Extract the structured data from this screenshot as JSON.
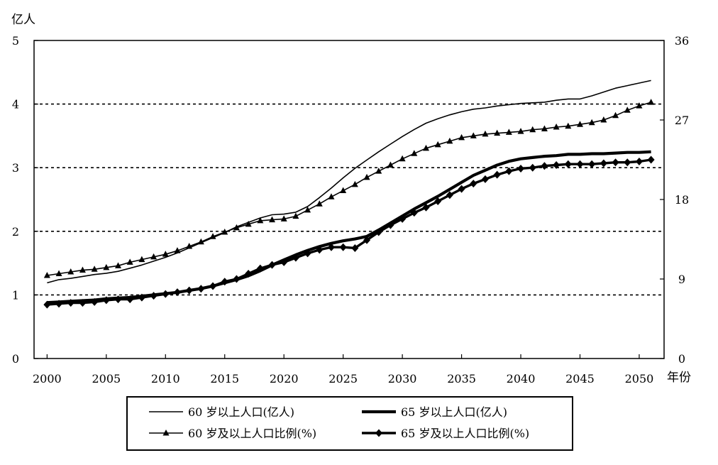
{
  "chart_data": {
    "type": "line",
    "left_axis_label": "亿人",
    "x_axis_label": "年份",
    "xlim": [
      1998.9,
      2052.1
    ],
    "x_ticks": [
      "2000",
      "2005",
      "2010",
      "2015",
      "2020",
      "2025",
      "2030",
      "2035",
      "2040",
      "2045",
      "2050"
    ],
    "ylim_left": [
      0,
      5
    ],
    "y_left_ticks": [
      "0",
      "1",
      "2",
      "3",
      "4",
      "5"
    ],
    "ylim_right": [
      0,
      36
    ],
    "y_right_ticks": [
      "0",
      "9",
      "18",
      "27",
      "36"
    ],
    "grid": "dashed horizontal lines at 1, 2, 3, 4 (left axis)",
    "legend_position": "bottom-center",
    "series": [
      {
        "name": "60 岁以上人口(亿人)",
        "axis": "left",
        "style": "thin line",
        "x": [
          2000,
          2001,
          2002,
          2003,
          2004,
          2005,
          2006,
          2007,
          2008,
          2009,
          2010,
          2011,
          2012,
          2013,
          2014,
          2015,
          2016,
          2017,
          2018,
          2019,
          2020,
          2021,
          2022,
          2023,
          2024,
          2025,
          2026,
          2027,
          2028,
          2029,
          2030,
          2031,
          2032,
          2033,
          2034,
          2035,
          2036,
          2037,
          2038,
          2039,
          2040,
          2041,
          2042,
          2043,
          2044,
          2045,
          2046,
          2047,
          2048,
          2049,
          2050,
          2051
        ],
        "values": [
          1.19,
          1.24,
          1.26,
          1.29,
          1.32,
          1.34,
          1.37,
          1.42,
          1.47,
          1.53,
          1.59,
          1.66,
          1.74,
          1.82,
          1.9,
          1.98,
          2.07,
          2.14,
          2.21,
          2.26,
          2.27,
          2.3,
          2.39,
          2.53,
          2.68,
          2.84,
          2.99,
          3.12,
          3.25,
          3.37,
          3.49,
          3.6,
          3.7,
          3.77,
          3.83,
          3.88,
          3.92,
          3.94,
          3.97,
          3.99,
          4.01,
          4.02,
          4.03,
          4.06,
          4.08,
          4.08,
          4.13,
          4.19,
          4.25,
          4.29,
          4.33,
          4.37
        ]
      },
      {
        "name": "65 岁以上人口(亿人)",
        "axis": "left",
        "style": "thick line",
        "x": [
          2000,
          2001,
          2002,
          2003,
          2004,
          2005,
          2006,
          2007,
          2008,
          2009,
          2010,
          2011,
          2012,
          2013,
          2014,
          2015,
          2016,
          2017,
          2018,
          2019,
          2020,
          2021,
          2022,
          2023,
          2024,
          2025,
          2026,
          2027,
          2028,
          2029,
          2030,
          2031,
          2032,
          2033,
          2034,
          2035,
          2036,
          2037,
          2038,
          2039,
          2040,
          2041,
          2042,
          2043,
          2044,
          2045,
          2046,
          2047,
          2048,
          2049,
          2050,
          2051
        ],
        "values": [
          0.88,
          0.89,
          0.9,
          0.91,
          0.92,
          0.94,
          0.95,
          0.96,
          0.98,
          1.0,
          1.02,
          1.04,
          1.07,
          1.1,
          1.14,
          1.19,
          1.24,
          1.3,
          1.38,
          1.47,
          1.55,
          1.63,
          1.7,
          1.76,
          1.81,
          1.85,
          1.88,
          1.92,
          2.02,
          2.13,
          2.24,
          2.35,
          2.45,
          2.55,
          2.66,
          2.77,
          2.88,
          2.96,
          3.04,
          3.1,
          3.14,
          3.16,
          3.18,
          3.19,
          3.21,
          3.21,
          3.22,
          3.22,
          3.23,
          3.24,
          3.24,
          3.25
        ]
      },
      {
        "name": "60 岁及以上人口比例(%)",
        "axis": "right",
        "style": "thin line, triangle markers",
        "x": [
          2000,
          2001,
          2002,
          2003,
          2004,
          2005,
          2006,
          2007,
          2008,
          2009,
          2010,
          2011,
          2012,
          2013,
          2014,
          2015,
          2016,
          2017,
          2018,
          2019,
          2020,
          2021,
          2022,
          2023,
          2024,
          2025,
          2026,
          2027,
          2028,
          2029,
          2030,
          2031,
          2032,
          2033,
          2034,
          2035,
          2036,
          2037,
          2038,
          2039,
          2040,
          2041,
          2042,
          2043,
          2044,
          2045,
          2046,
          2047,
          2048,
          2049,
          2050,
          2051
        ],
        "values": [
          9.4,
          9.6,
          9.8,
          10.0,
          10.1,
          10.3,
          10.5,
          10.9,
          11.2,
          11.5,
          11.8,
          12.2,
          12.7,
          13.2,
          13.8,
          14.3,
          14.8,
          15.2,
          15.6,
          15.7,
          15.8,
          16.1,
          16.8,
          17.5,
          18.3,
          19.0,
          19.7,
          20.5,
          21.2,
          21.9,
          22.6,
          23.2,
          23.8,
          24.2,
          24.6,
          25.0,
          25.2,
          25.4,
          25.5,
          25.6,
          25.7,
          25.9,
          26.0,
          26.2,
          26.3,
          26.5,
          26.7,
          27.0,
          27.5,
          28.1,
          28.6,
          29.0
        ]
      },
      {
        "name": "65 岁及以上人口比例(%)",
        "axis": "right",
        "style": "thick line, diamond markers",
        "x": [
          2000,
          2001,
          2002,
          2003,
          2004,
          2005,
          2006,
          2007,
          2008,
          2009,
          2010,
          2011,
          2012,
          2013,
          2014,
          2015,
          2016,
          2017,
          2018,
          2019,
          2020,
          2021,
          2022,
          2023,
          2024,
          2025,
          2026,
          2027,
          2028,
          2029,
          2030,
          2031,
          2032,
          2033,
          2034,
          2035,
          2036,
          2037,
          2038,
          2039,
          2040,
          2041,
          2042,
          2043,
          2044,
          2045,
          2046,
          2047,
          2048,
          2049,
          2050,
          2051
        ],
        "values": [
          6.1,
          6.2,
          6.3,
          6.3,
          6.4,
          6.6,
          6.7,
          6.7,
          6.9,
          7.1,
          7.3,
          7.5,
          7.7,
          7.9,
          8.2,
          8.7,
          9.0,
          9.6,
          10.2,
          10.6,
          10.9,
          11.4,
          11.9,
          12.3,
          12.6,
          12.6,
          12.5,
          13.4,
          14.3,
          15.1,
          15.8,
          16.5,
          17.1,
          17.8,
          18.5,
          19.2,
          19.8,
          20.3,
          20.8,
          21.2,
          21.5,
          21.6,
          21.8,
          21.9,
          22.0,
          22.0,
          22.0,
          22.1,
          22.2,
          22.2,
          22.3,
          22.5
        ]
      }
    ]
  }
}
